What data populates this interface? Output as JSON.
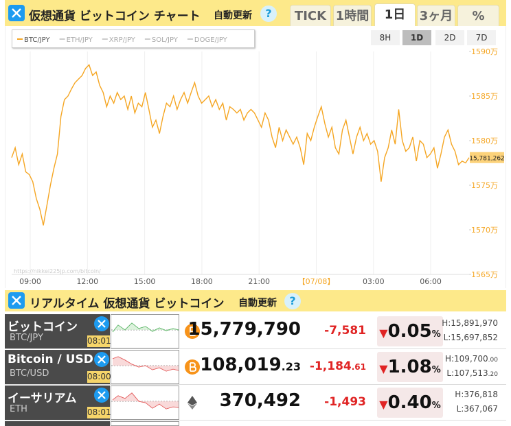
{
  "header": {
    "title": "仮想通貨 ビットコイン チャート",
    "auto_update": "自動更新",
    "help": "?",
    "tabs": [
      "TICK",
      "1時間",
      "1日",
      "3ヶ月",
      "%"
    ],
    "active_tab": 2
  },
  "chart_data": {
    "type": "line",
    "series": [
      {
        "name": "BTC/JPY",
        "color": "#f5a623",
        "values": [
          1578.1,
          1579.2,
          1577.3,
          1578.5,
          1576.5,
          1576.2,
          1575.4,
          1573.5,
          1572.3,
          1570.5,
          1572.7,
          1575.0,
          1576.9,
          1578.5,
          1582.7,
          1584.6,
          1585.0,
          1585.8,
          1586.5,
          1586.9,
          1587.3,
          1588.1,
          1588.5,
          1587.3,
          1587.7,
          1586.2,
          1585.4,
          1583.8,
          1585.0,
          1584.2,
          1585.4,
          1584.6,
          1585.0,
          1583.5,
          1585.0,
          1583.1,
          1584.2,
          1583.8,
          1585.4,
          1583.5,
          1581.5,
          1582.3,
          1580.8,
          1582.7,
          1584.2,
          1583.8,
          1585.0,
          1583.5,
          1584.6,
          1585.4,
          1584.2,
          1585.4,
          1586.5,
          1585.0,
          1584.2,
          1584.6,
          1585.0,
          1583.8,
          1584.6,
          1583.5,
          1584.2,
          1582.3,
          1583.8,
          1583.5,
          1583.1,
          1583.5,
          1582.3,
          1583.1,
          1583.5,
          1583.1,
          1582.3,
          1581.5,
          1583.1,
          1582.3,
          1580.4,
          1579.2,
          1581.5,
          1580.0,
          1581.2,
          1580.4,
          1579.6,
          1580.4,
          1579.2,
          1577.3,
          1580.8,
          1580.0,
          1581.5,
          1582.7,
          1583.8,
          1581.9,
          1580.4,
          1581.5,
          1579.2,
          1578.5,
          1581.2,
          1582.3,
          1580.4,
          1578.5,
          1580.4,
          1581.5,
          1580.0,
          1580.8,
          1579.6,
          1580.0,
          1578.8,
          1575.4,
          1578.1,
          1579.2,
          1581.2,
          1579.6,
          1583.5,
          1580.0,
          1578.8,
          1579.2,
          1580.4,
          1577.7,
          1580.0,
          1579.6,
          1578.1,
          1578.5,
          1579.2,
          1576.9,
          1578.5,
          1580.4,
          1581.2,
          1579.6,
          1578.8,
          1577.3,
          1577.7,
          1577.5,
          1578.1
        ]
      }
    ],
    "hidden_series": [
      "ETH/JPY",
      "XRP/JPY",
      "SOL/JPY",
      "DOGE/JPY"
    ],
    "ylim": [
      1565,
      1590
    ],
    "yticks": [
      {
        "value": 1590,
        "label": "1590万"
      },
      {
        "value": 1585,
        "label": "1585万"
      },
      {
        "value": 1580,
        "label": "1580万"
      },
      {
        "value": 1575,
        "label": "1575万"
      },
      {
        "value": 1570,
        "label": "1570万"
      },
      {
        "value": 1565,
        "label": "1565万"
      }
    ],
    "xtick_labels": [
      "09:00",
      "12:00",
      "15:00",
      "18:00",
      "21:00",
      "【07/08】",
      "03:00",
      "06:00"
    ],
    "last_label": "15,781,262",
    "watermark": "https://nikkei225jp.com/bitcoin/",
    "range_buttons": [
      "8H",
      "1D",
      "2D",
      "7D"
    ],
    "active_range": 1,
    "grid": true
  },
  "realtime": {
    "title": "リアルタイム 仮想通貨 ビットコイン",
    "auto_update": "自動更新",
    "help": "?",
    "rows": [
      {
        "name": "ビットコイン",
        "pair": "BTC/JPY",
        "time": "08:01",
        "price": "15,779,790",
        "change": "-7,581",
        "arrow": "▼",
        "pct": "0.05",
        "pct_unit": "%",
        "high": "H:15,891,970",
        "low": "L:15,697,852"
      },
      {
        "name": "Bitcoin / USD",
        "pair": "BTC/USD",
        "time": "08:00",
        "price": "108,019",
        "price_dec": ".23",
        "change": "-1,184",
        "change_dec": ".61",
        "arrow": "▼",
        "pct": "1.08",
        "pct_unit": "%",
        "high": "H:109,700",
        "high_dec": ".00",
        "low": "L:107,513",
        "low_dec": ".20"
      },
      {
        "name": "イーサリアム",
        "pair": "ETH",
        "time": "08:01",
        "price": "370,492",
        "change": "-1,493",
        "arrow": "▼",
        "pct": "0.40",
        "pct_unit": "%",
        "high": "H:376,818",
        "low": "L:367,067"
      }
    ]
  }
}
